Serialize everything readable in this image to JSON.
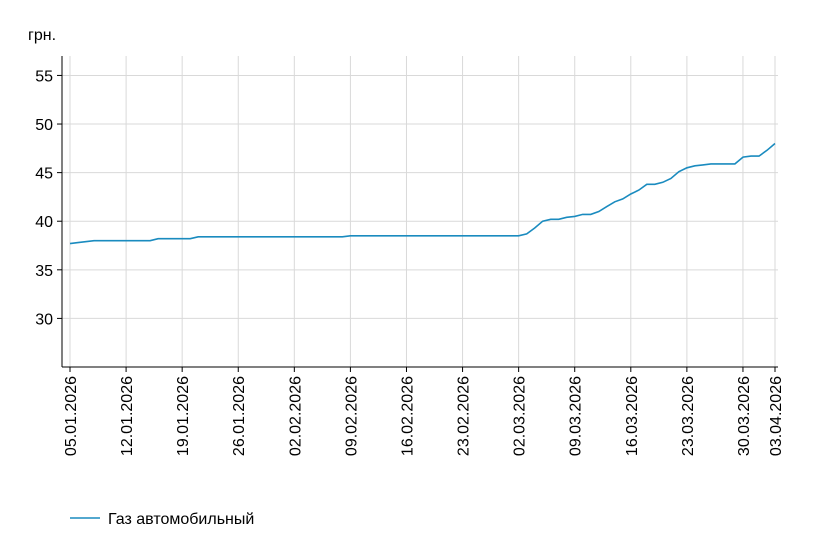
{
  "chart_data": {
    "type": "line",
    "y_label": "грн.",
    "x": [
      "05.01.2026",
      "06.01.2026",
      "08.01.2026",
      "15.01.2026",
      "16.01.2026",
      "20.01.2026",
      "21.01.2026",
      "08.02.2026",
      "09.02.2026",
      "02.03.2026",
      "03.03.2026",
      "04.03.2026",
      "05.03.2026",
      "06.03.2026",
      "07.03.2026",
      "08.03.2026",
      "09.03.2026",
      "10.03.2026",
      "11.03.2026",
      "12.03.2026",
      "13.03.2026",
      "14.03.2026",
      "15.03.2026",
      "16.03.2026",
      "17.03.2026",
      "18.03.2026",
      "19.03.2026",
      "20.03.2026",
      "21.03.2026",
      "22.03.2026",
      "23.03.2026",
      "24.03.2026",
      "25.03.2026",
      "26.03.2026",
      "29.03.2026",
      "30.03.2026",
      "31.03.2026",
      "01.04.2026",
      "02.04.2026",
      "03.04.2026"
    ],
    "series": [
      {
        "name": "Газ автомобильный",
        "color": "#1a8bbf",
        "values": [
          37.7,
          37.8,
          38.0,
          38.0,
          38.2,
          38.2,
          38.4,
          38.4,
          38.5,
          38.5,
          38.7,
          39.3,
          40.0,
          40.2,
          40.2,
          40.4,
          40.5,
          40.7,
          40.7,
          41.0,
          41.5,
          42.0,
          42.3,
          42.8,
          43.2,
          43.8,
          43.8,
          44.0,
          44.4,
          45.1,
          45.5,
          45.7,
          45.8,
          45.9,
          45.9,
          46.6,
          46.7,
          46.7,
          47.3,
          48.0
        ]
      }
    ],
    "xlim": [
      "04.01.2026",
      "03.04.2026"
    ],
    "xticks": [
      "05.01.2026",
      "12.01.2026",
      "19.01.2026",
      "26.01.2026",
      "02.02.2026",
      "09.02.2026",
      "16.02.2026",
      "23.02.2026",
      "02.03.2026",
      "09.03.2026",
      "16.03.2026",
      "23.03.2026",
      "30.03.2026",
      "03.04.2026"
    ],
    "ylim": [
      25,
      57
    ],
    "yticks": [
      30,
      35,
      40,
      45,
      50,
      55
    ],
    "grid": true
  }
}
